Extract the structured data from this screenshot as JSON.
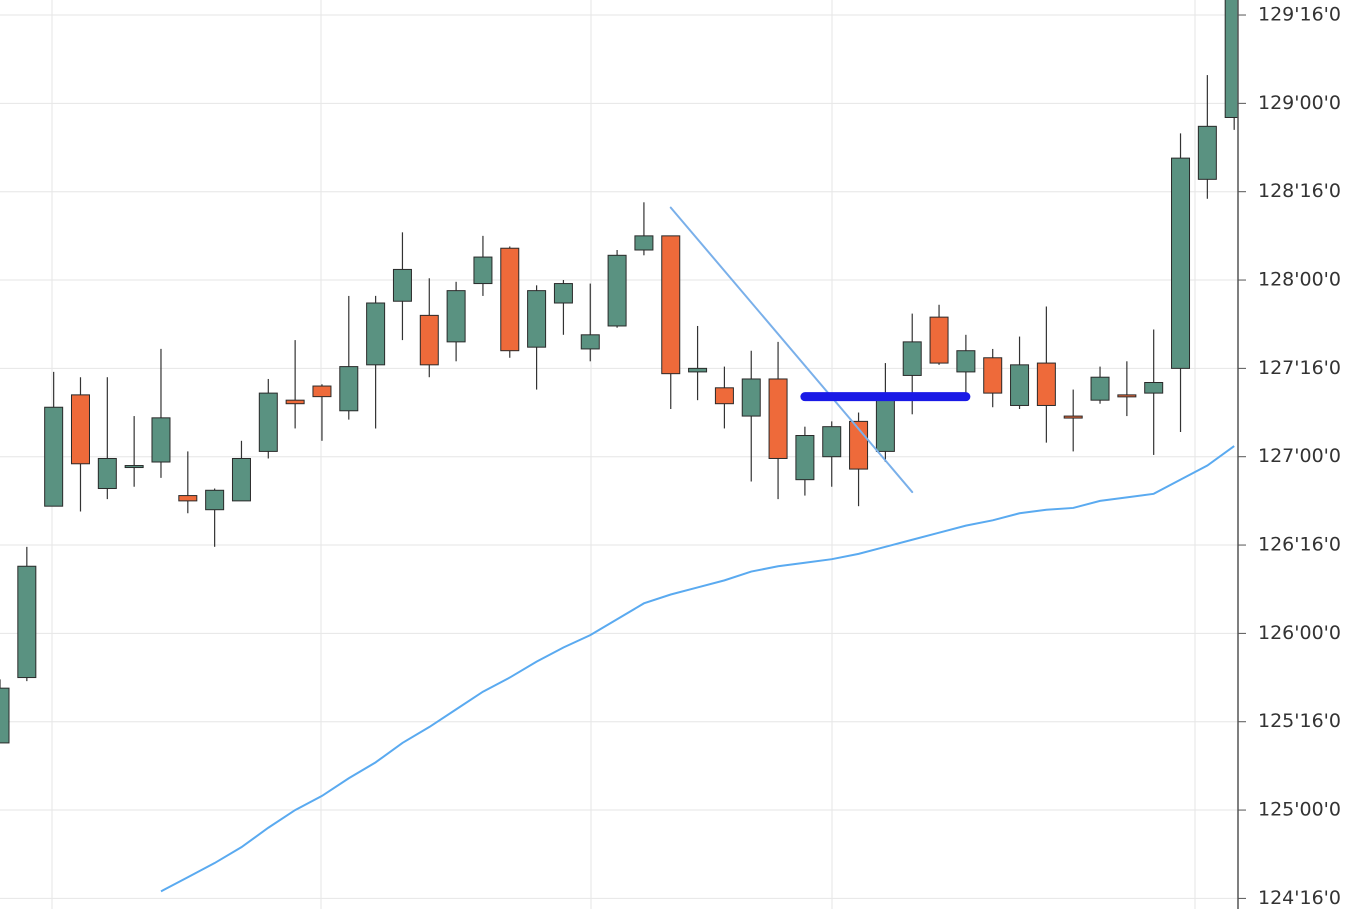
{
  "chart_data": {
    "type": "candlestick",
    "up_color": "#5a9281",
    "down_color": "#ee6a3a",
    "grid": true,
    "ylim": [
      124.44,
      129.585
    ],
    "yticks": [
      {
        "value": 124.5,
        "label": "124'16'0"
      },
      {
        "value": 125.0,
        "label": "125'00'0"
      },
      {
        "value": 125.5,
        "label": "125'16'0"
      },
      {
        "value": 126.0,
        "label": "126'00'0"
      },
      {
        "value": 126.5,
        "label": "126'16'0"
      },
      {
        "value": 127.0,
        "label": "127'00'0"
      },
      {
        "value": 127.5,
        "label": "127'16'0"
      },
      {
        "value": 128.0,
        "label": "128'00'0"
      },
      {
        "value": 128.5,
        "label": "128'16'0"
      },
      {
        "value": 129.0,
        "label": "129'00'0"
      },
      {
        "value": 129.5,
        "label": "129'16'0"
      }
    ],
    "open": [
      125.38,
      125.75,
      126.72,
      127.35,
      126.82,
      126.94,
      126.97,
      126.78,
      126.7,
      126.75,
      127.03,
      127.32,
      127.4,
      127.26,
      127.52,
      127.88,
      127.8,
      127.65,
      127.98,
      128.18,
      127.62,
      127.87,
      127.61,
      127.74,
      128.17,
      128.25,
      127.48,
      127.39,
      127.23,
      127.44,
      126.87,
      127.0,
      127.2,
      127.03,
      127.46,
      127.79,
      127.48,
      127.56,
      127.29,
      127.53,
      127.23,
      127.32,
      127.35,
      127.36,
      127.5,
      128.57,
      128.92
    ],
    "high": [
      125.74,
      126.49,
      127.48,
      127.45,
      127.45,
      127.23,
      127.61,
      127.03,
      126.82,
      127.09,
      127.44,
      127.66,
      127.41,
      127.91,
      127.91,
      128.27,
      128.01,
      127.99,
      128.25,
      128.19,
      127.97,
      128.0,
      127.98,
      128.17,
      128.44,
      128.25,
      127.74,
      127.51,
      127.6,
      127.65,
      127.17,
      127.2,
      127.25,
      127.53,
      127.81,
      127.86,
      127.69,
      127.61,
      127.68,
      127.85,
      127.38,
      127.51,
      127.54,
      127.72,
      128.83,
      129.16,
      129.59
    ],
    "low": [
      125.38,
      125.73,
      126.72,
      126.69,
      126.76,
      126.83,
      126.88,
      126.68,
      126.49,
      126.75,
      126.99,
      127.16,
      127.09,
      127.21,
      127.16,
      127.66,
      127.45,
      127.54,
      127.91,
      127.56,
      127.38,
      127.69,
      127.54,
      127.73,
      128.14,
      127.27,
      127.32,
      127.16,
      126.86,
      126.76,
      126.78,
      126.83,
      126.72,
      126.97,
      127.24,
      127.52,
      127.35,
      127.28,
      127.27,
      127.08,
      127.03,
      127.3,
      127.23,
      127.01,
      127.14,
      128.46,
      128.85
    ],
    "close": [
      125.69,
      126.38,
      127.28,
      126.96,
      126.99,
      126.95,
      127.22,
      126.75,
      126.81,
      126.99,
      127.36,
      127.3,
      127.34,
      127.51,
      127.87,
      128.06,
      127.52,
      127.94,
      128.13,
      127.6,
      127.94,
      127.98,
      127.69,
      128.14,
      128.25,
      127.47,
      127.5,
      127.3,
      127.44,
      126.99,
      127.12,
      127.17,
      126.93,
      127.35,
      127.65,
      127.53,
      127.6,
      127.36,
      127.52,
      127.29,
      127.22,
      127.45,
      127.34,
      127.42,
      128.69,
      128.87,
      129.59
    ],
    "ma": {
      "color": "#5aaaf0",
      "values": [
        null,
        null,
        null,
        null,
        null,
        null,
        124.54,
        124.62,
        124.7,
        124.79,
        124.9,
        125.0,
        125.08,
        125.18,
        125.27,
        125.38,
        125.47,
        125.57,
        125.67,
        125.75,
        125.84,
        125.92,
        125.99,
        126.08,
        126.17,
        126.22,
        126.26,
        126.3,
        126.35,
        126.38,
        126.4,
        126.42,
        126.45,
        126.49,
        126.53,
        126.57,
        126.61,
        126.64,
        126.68,
        126.7,
        126.71,
        126.75,
        126.77,
        126.79,
        126.87,
        126.95,
        127.06
      ]
    },
    "lines": [
      {
        "color": "#7ab0ea",
        "width": 2,
        "start": [
          25,
          128.41
        ],
        "end": [
          34,
          126.8
        ]
      },
      {
        "color": "#1a1ae6",
        "width": 9,
        "start": [
          30,
          127.34
        ],
        "end": [
          36,
          127.34
        ]
      }
    ]
  }
}
